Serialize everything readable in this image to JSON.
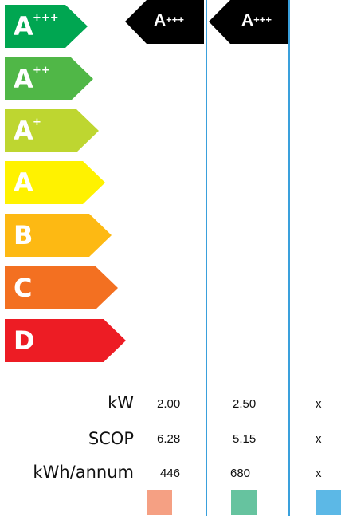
{
  "energy_classes": [
    {
      "letter": "A",
      "sup": "+++",
      "color": "#00a651",
      "width": 98
    },
    {
      "letter": "A",
      "sup": "++",
      "color": "#50b747",
      "width": 105
    },
    {
      "letter": "A",
      "sup": "+",
      "color": "#bed630",
      "width": 112
    },
    {
      "letter": "A",
      "sup": "",
      "color": "#fff200",
      "width": 120
    },
    {
      "letter": "B",
      "sup": "",
      "color": "#fdb913",
      "width": 128
    },
    {
      "letter": "C",
      "sup": "",
      "color": "#f37021",
      "width": 136
    },
    {
      "letter": "D",
      "sup": "",
      "color": "#ed1c24",
      "width": 146
    }
  ],
  "products": [
    {
      "rating_letter": "A",
      "rating_sup": "+++",
      "kw": "2.00",
      "scop": "6.28",
      "kwh_annum": "446",
      "swatch_color": "#f5a083"
    },
    {
      "rating_letter": "A",
      "rating_sup": "+++",
      "kw": "2.50",
      "scop": "5.15",
      "kwh_annum": "680",
      "swatch_color": "#66c39f"
    },
    {
      "rating_letter": "",
      "rating_sup": "",
      "kw": "x",
      "scop": "x",
      "kwh_annum": "x",
      "swatch_color": "#5cb8e6"
    }
  ],
  "row_labels": {
    "kw": "kW",
    "scop": "SCOP",
    "kwh_annum": "kWh/annum"
  }
}
